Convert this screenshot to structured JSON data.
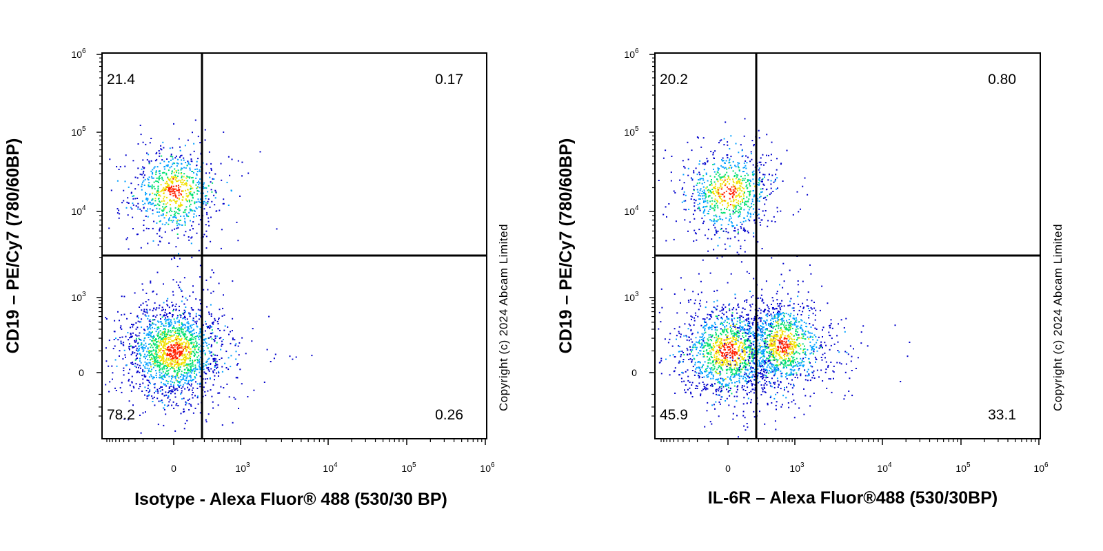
{
  "copyright": "Copyright (c) 2024 Abcam Limited",
  "chart_data": [
    {
      "type": "scatter",
      "xlabel": "Isotype - Alexa Fluor® 488 (530/30 BP)",
      "ylabel": "CD19 – PE/Cy7 (780/60BP)",
      "x_scale": "biexponential",
      "y_scale": "biexponential",
      "x_ticks": [
        "0",
        "10^3",
        "10^4",
        "10^5",
        "10^6"
      ],
      "y_ticks": [
        "0",
        "10^3",
        "10^4",
        "10^5",
        "10^6"
      ],
      "quadrant_gate": {
        "x": 350,
        "y": 3000
      },
      "quadrants": {
        "upper_left": "21.4",
        "upper_right": "0.17",
        "lower_left": "78.2",
        "lower_right": "0.26"
      },
      "populations": [
        {
          "name": "",
          "x_center": 0,
          "y_center": 18000,
          "n": 800
        },
        {
          "name": "",
          "x_center": 0,
          "y_center": 100,
          "n": 1800
        }
      ],
      "density_colors": [
        "#0000cc",
        "#00a0ff",
        "#00e070",
        "#f0e000",
        "#ff2000"
      ]
    },
    {
      "type": "scatter",
      "xlabel": "IL-6R – Alexa Fluor®488 (530/30BP)",
      "ylabel": "CD19 – PE/Cy7 (780/60BP)",
      "x_scale": "biexponential",
      "y_scale": "biexponential",
      "x_ticks": [
        "0",
        "10^3",
        "10^4",
        "10^5",
        "10^6"
      ],
      "y_ticks": [
        "0",
        "10^3",
        "10^4",
        "10^5",
        "10^6"
      ],
      "quadrant_gate": {
        "x": 350,
        "y": 3000
      },
      "quadrants": {
        "upper_left": "20.2",
        "upper_right": "0.80",
        "lower_left": "45.9",
        "lower_right": "33.1"
      },
      "populations": [
        {
          "name": "",
          "x_center": 0,
          "y_center": 18000,
          "n": 800
        },
        {
          "name": "",
          "x_center": 0,
          "y_center": 100,
          "n": 1400
        },
        {
          "name": "",
          "x_center": 600,
          "y_center": 150,
          "n": 1100
        }
      ],
      "density_colors": [
        "#0000cc",
        "#00a0ff",
        "#00e070",
        "#f0e000",
        "#ff2000"
      ]
    }
  ]
}
